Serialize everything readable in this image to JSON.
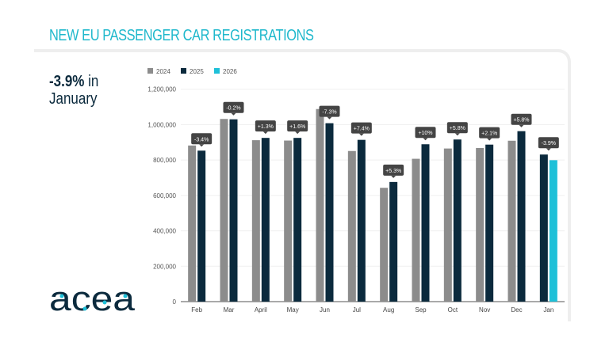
{
  "title": "NEW EU PASSENGER CAR REGISTRATIONS",
  "headline": {
    "value": "-3.9%",
    "rest_1": " in",
    "rest_2": "January"
  },
  "logo": {
    "text": "acea"
  },
  "colors": {
    "2024": "#8c8c8c",
    "2025": "#0b2a3d",
    "2026": "#1ec0d8",
    "title": "#1fb8cc",
    "label_box": "#444444"
  },
  "chart_data": {
    "type": "bar",
    "title": "",
    "xlabel": "",
    "ylabel": "",
    "ylim": [
      0,
      1200000
    ],
    "yticks": [
      "0",
      "200,000",
      "400,000",
      "600,000",
      "800,000",
      "1,000,000",
      "1,200,000"
    ],
    "grid": true,
    "legend": "top-left",
    "categories": [
      "Feb",
      "Mar",
      "April",
      "May",
      "Jun",
      "Jul",
      "Aug",
      "Sep",
      "Oct",
      "Nov",
      "Dec",
      "Jan"
    ],
    "series": [
      {
        "name": "2024",
        "values": [
          882000,
          1032000,
          912000,
          910000,
          1088000,
          851000,
          643000,
          807000,
          865000,
          868000,
          909000,
          null
        ]
      },
      {
        "name": "2025",
        "values": [
          853000,
          1030000,
          925000,
          925000,
          1008000,
          914000,
          676000,
          889000,
          916000,
          887000,
          963000,
          831000
        ]
      },
      {
        "name": "2026",
        "values": [
          null,
          null,
          null,
          null,
          null,
          null,
          null,
          null,
          null,
          null,
          null,
          799000
        ]
      }
    ],
    "annotations": [
      "-3.4%",
      "-0.2%",
      "+1.3%",
      "+1.6%",
      "-7.3%",
      "+7.4%",
      "+5.3%",
      "+10%",
      "+5.8%",
      "+2.1%",
      "+5.8%",
      "-3.9%"
    ]
  }
}
